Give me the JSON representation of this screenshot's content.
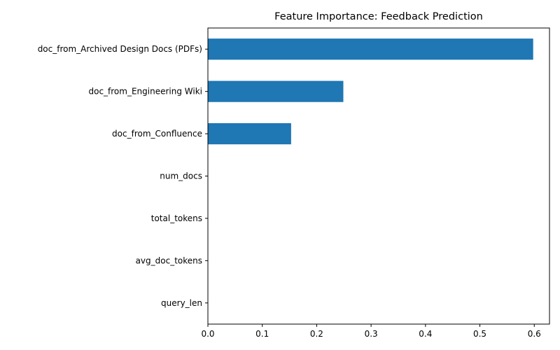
{
  "chart_data": {
    "type": "bar",
    "orientation": "horizontal",
    "title": "Feature Importance: Feedback Prediction",
    "xlabel": "",
    "ylabel": "",
    "categories": [
      "doc_from_Archived Design Docs (PDFs)",
      "doc_from_Engineering Wiki",
      "doc_from_Confluence",
      "num_docs",
      "total_tokens",
      "avg_doc_tokens",
      "query_len"
    ],
    "values": [
      0.598,
      0.249,
      0.153,
      0,
      0,
      0,
      0
    ],
    "xlim": [
      0,
      0.628
    ],
    "xticks": [
      0.0,
      0.1,
      0.2,
      0.3,
      0.4,
      0.5,
      0.6
    ],
    "xtick_labels": [
      "0.0",
      "0.1",
      "0.2",
      "0.3",
      "0.4",
      "0.5",
      "0.6"
    ],
    "bar_color": "#1f77b4",
    "grid": false,
    "legend": "none"
  }
}
